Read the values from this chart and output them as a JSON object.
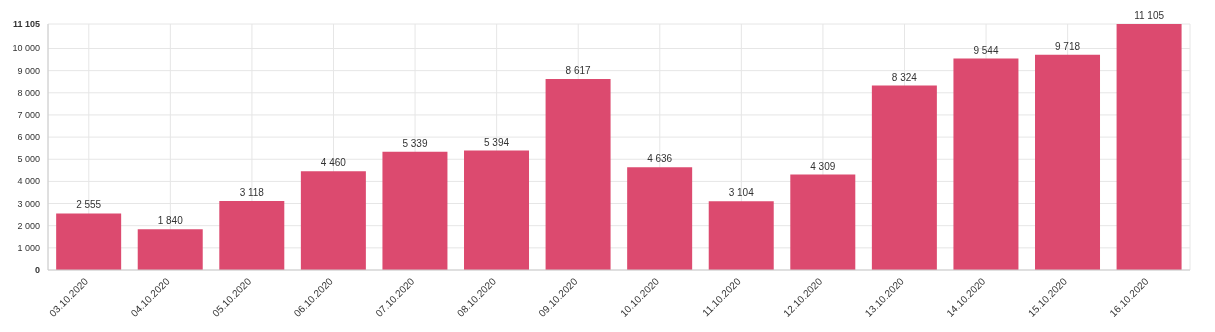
{
  "chart_data": {
    "type": "bar",
    "categories": [
      "03.10.2020",
      "04.10.2020",
      "05.10.2020",
      "06.10.2020",
      "07.10.2020",
      "08.10.2020",
      "09.10.2020",
      "10.10.2020",
      "11.10.2020",
      "12.10.2020",
      "13.10.2020",
      "14.10.2020",
      "15.10.2020",
      "16.10.2020"
    ],
    "values": [
      2555,
      1840,
      3118,
      4460,
      5339,
      5394,
      8617,
      4636,
      3104,
      4309,
      8324,
      9544,
      9718,
      11105
    ],
    "value_labels": [
      "2 555",
      "1 840",
      "3 118",
      "4 460",
      "5 339",
      "5 394",
      "8 617",
      "4 636",
      "3 104",
      "4 309",
      "8 324",
      "9 544",
      "9 718",
      "11 105"
    ],
    "color": "#dc4a6f",
    "ylim": [
      0,
      11105
    ],
    "yticks": [
      0,
      {
        "value": 1000,
        "label": "1 000"
      },
      {
        "value": 2000,
        "label": "2 000"
      },
      {
        "value": 3000,
        "label": "3 000"
      },
      {
        "value": 4000,
        "label": "4 000"
      },
      {
        "value": 5000,
        "label": "5 000"
      },
      {
        "value": 6000,
        "label": "6 000"
      },
      {
        "value": 7000,
        "label": "7 000"
      },
      {
        "value": 8000,
        "label": "8 000"
      },
      {
        "value": 9000,
        "label": "9 000"
      },
      {
        "value": 10000,
        "label": "10 000"
      },
      {
        "value": 11105,
        "label": "11 105"
      }
    ],
    "grid": true
  }
}
